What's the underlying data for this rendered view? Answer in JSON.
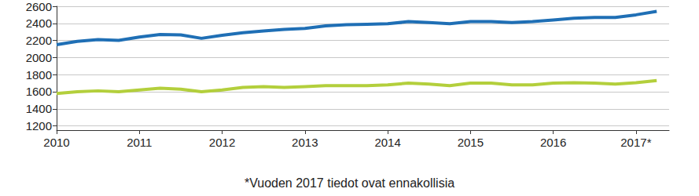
{
  "chart_data": {
    "type": "line",
    "note": "*Vuoden 2017 tiedot ovat ennakollisia",
    "x": [
      2010,
      2010.25,
      2010.5,
      2010.75,
      2011,
      2011.25,
      2011.5,
      2011.75,
      2012,
      2012.25,
      2012.5,
      2012.75,
      2013,
      2013.25,
      2013.5,
      2013.75,
      2014,
      2014.25,
      2014.5,
      2014.75,
      2015,
      2015.25,
      2015.5,
      2015.75,
      2016,
      2016.25,
      2016.5,
      2016.75,
      2017,
      2017.25
    ],
    "series": [
      {
        "color": "#1f6fb5",
        "values": [
          2150,
          2190,
          2210,
          2200,
          2240,
          2270,
          2265,
          2225,
          2260,
          2290,
          2310,
          2330,
          2340,
          2370,
          2385,
          2390,
          2395,
          2420,
          2410,
          2395,
          2420,
          2420,
          2410,
          2420,
          2440,
          2460,
          2470,
          2470,
          2500,
          2540
        ]
      },
      {
        "color": "#b3cf3c",
        "values": [
          1580,
          1600,
          1610,
          1600,
          1620,
          1640,
          1630,
          1600,
          1620,
          1650,
          1660,
          1650,
          1660,
          1670,
          1670,
          1670,
          1680,
          1700,
          1690,
          1670,
          1700,
          1700,
          1680,
          1680,
          1700,
          1705,
          1700,
          1690,
          1705,
          1730
        ]
      }
    ],
    "xlim": [
      2010,
      2017.4
    ],
    "xticks": [
      2010,
      2011,
      2012,
      2013,
      2014,
      2015,
      2016,
      {
        "value": 2017,
        "label": "2017*"
      }
    ],
    "ylim": [
      1150,
      2600
    ],
    "yticks": [
      1200,
      1400,
      1600,
      1800,
      2000,
      2200,
      2400,
      2600
    ],
    "grid": true
  }
}
